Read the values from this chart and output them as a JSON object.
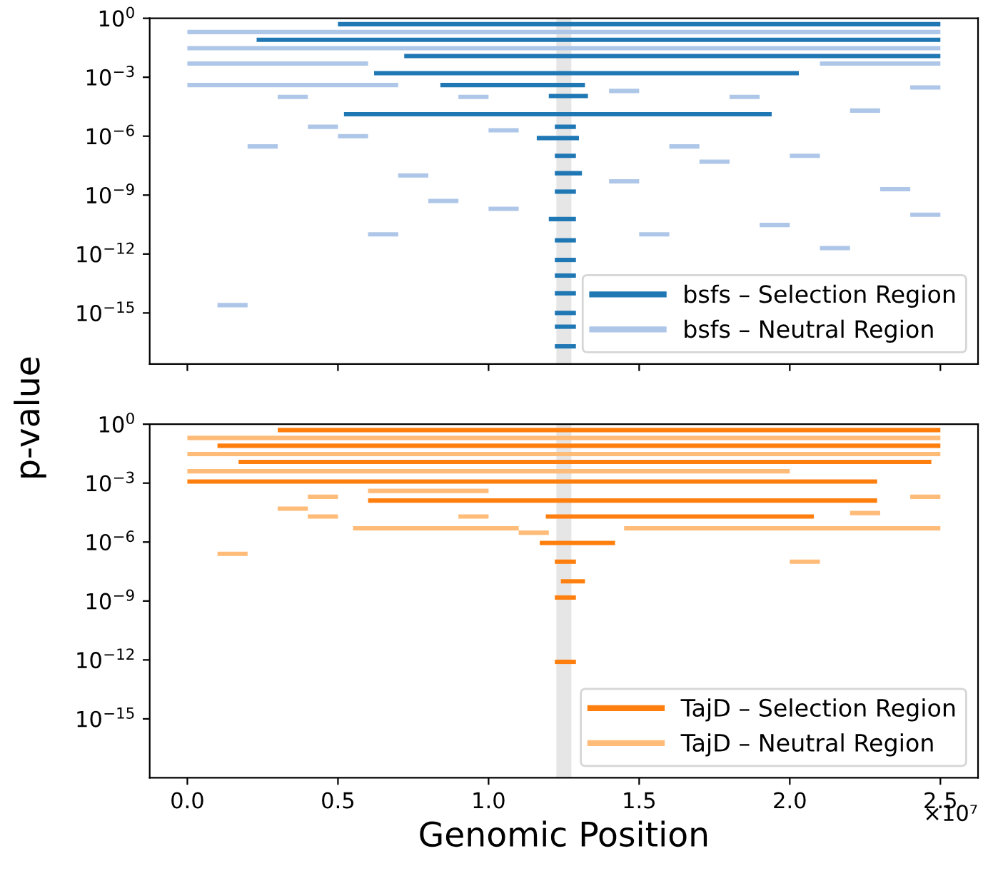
{
  "chart_data": [
    {
      "type": "line",
      "ylabel": "p-value",
      "log": "y",
      "legend": "bottom right",
      "tick_labels": "y",
      "line_style": "solid",
      "xlim": [
        -0.125,
        2.625
      ],
      "xticks": [
        {
          "value": 0,
          "label": null
        },
        {
          "value": 0.5,
          "label": null
        },
        {
          "value": 1,
          "label": null
        },
        {
          "value": 1.5,
          "label": null
        },
        {
          "value": 2,
          "label": null
        },
        {
          "value": 2.5,
          "label": null
        }
      ],
      "ylim": [
        2.5e-18,
        1
      ],
      "yticks": [
        {
          "value": 1,
          "label": "10$^{0}$"
        },
        {
          "value": 0.001,
          "label": "10$^{−3}$"
        },
        {
          "value": 1e-06,
          "label": "10$^{−6}$"
        },
        {
          "value": 1e-09,
          "label": "10$^{−9}$"
        },
        {
          "value": 1e-12,
          "label": "10$^{−12}$"
        },
        {
          "value": 1e-15,
          "label": "10$^{−15}$"
        }
      ],
      "bands": [
        {
          "axis": "x",
          "from": 1.225,
          "to": 1.275,
          "color": "#e6e6e6"
        }
      ],
      "series": [
        {
          "name": "bsfs – Selection Region",
          "color": "#1f77b4",
          "x": [
            0.5,
            2.5
          ],
          "values": [
            0.5,
            0.5
          ]
        },
        {
          "color": "#1f77b4",
          "x": [
            0.23,
            2.5
          ],
          "values": [
            0.08,
            0.08
          ]
        },
        {
          "color": "#1f77b4",
          "x": [
            0.72,
            2.5
          ],
          "values": [
            0.012,
            0.012
          ]
        },
        {
          "color": "#1f77b4",
          "x": [
            0.62,
            2.03
          ],
          "values": [
            0.0016,
            0.0016
          ]
        },
        {
          "color": "#1f77b4",
          "x": [
            0.84,
            1.32
          ],
          "values": [
            0.0004,
            0.0004
          ]
        },
        {
          "color": "#1f77b4",
          "x": [
            1.2,
            1.33
          ],
          "values": [
            0.00011,
            0.00011
          ]
        },
        {
          "color": "#1f77b4",
          "x": [
            0.52,
            1.94
          ],
          "values": [
            1.3e-05,
            1.3e-05
          ]
        },
        {
          "color": "#1f77b4",
          "x": [
            1.16,
            1.3
          ],
          "values": [
            8e-07,
            8e-07
          ]
        },
        {
          "color": "#1f77b4",
          "x": [
            1.22,
            1.31
          ],
          "values": [
            1.3e-08,
            1.3e-08
          ]
        },
        {
          "color": "#1f77b4",
          "x": [
            1.2,
            1.29
          ],
          "values": [
            6e-11,
            6e-11
          ]
        },
        {
          "color": "#1f77b4",
          "x": [
            1.22,
            1.29
          ],
          "values": [
            3e-06,
            3e-06
          ]
        },
        {
          "color": "#1f77b4",
          "x": [
            1.22,
            1.29
          ],
          "values": [
            1e-07,
            1e-07
          ]
        },
        {
          "color": "#1f77b4",
          "x": [
            1.22,
            1.29
          ],
          "values": [
            1.5e-09,
            1.5e-09
          ]
        },
        {
          "color": "#1f77b4",
          "x": [
            1.22,
            1.29
          ],
          "values": [
            5e-12,
            5e-12
          ]
        },
        {
          "color": "#1f77b4",
          "x": [
            1.22,
            1.29
          ],
          "values": [
            5e-13,
            5e-13
          ]
        },
        {
          "color": "#1f77b4",
          "x": [
            1.22,
            1.29
          ],
          "values": [
            8e-14,
            8e-14
          ]
        },
        {
          "color": "#1f77b4",
          "x": [
            1.22,
            1.29
          ],
          "values": [
            1e-14,
            1e-14
          ]
        },
        {
          "color": "#1f77b4",
          "x": [
            1.22,
            1.29
          ],
          "values": [
            1e-15,
            1e-15
          ]
        },
        {
          "color": "#1f77b4",
          "x": [
            1.22,
            1.29
          ],
          "values": [
            2e-16,
            2e-16
          ]
        },
        {
          "color": "#1f77b4",
          "x": [
            1.22,
            1.29
          ],
          "values": [
            2e-17,
            2e-17
          ]
        },
        {
          "name": "bsfs – Neutral Region",
          "color": "#aec7e8",
          "x": [
            0,
            2.5
          ],
          "values": [
            0.2,
            0.2
          ]
        },
        {
          "color": "#aec7e8",
          "x": [
            0,
            2.5
          ],
          "values": [
            0.03,
            0.03
          ]
        },
        {
          "color": "#aec7e8",
          "x": [
            0,
            0.6
          ],
          "values": [
            0.005,
            0.005
          ]
        },
        {
          "color": "#aec7e8",
          "x": [
            2.1,
            2.5
          ],
          "values": [
            0.005,
            0.005
          ]
        },
        {
          "color": "#aec7e8",
          "x": [
            0,
            0.7
          ],
          "values": [
            0.0004,
            0.0004
          ]
        },
        {
          "color": "#aec7e8",
          "x": [
            0.3,
            0.4
          ],
          "values": [
            0.0001,
            0.0001
          ]
        },
        {
          "color": "#aec7e8",
          "x": [
            0.9,
            1.0
          ],
          "values": [
            0.0001,
            0.0001
          ]
        },
        {
          "color": "#aec7e8",
          "x": [
            1.8,
            1.9
          ],
          "values": [
            0.0001,
            0.0001
          ]
        },
        {
          "color": "#aec7e8",
          "x": [
            2.2,
            2.3
          ],
          "values": [
            2e-05,
            2e-05
          ]
        },
        {
          "color": "#aec7e8",
          "x": [
            0.5,
            0.6
          ],
          "values": [
            1e-06,
            1e-06
          ]
        },
        {
          "color": "#aec7e8",
          "x": [
            1.6,
            1.7
          ],
          "values": [
            3e-07,
            3e-07
          ]
        },
        {
          "color": "#aec7e8",
          "x": [
            2.0,
            2.1
          ],
          "values": [
            1e-07,
            1e-07
          ]
        },
        {
          "color": "#aec7e8",
          "x": [
            0.7,
            0.8
          ],
          "values": [
            1e-08,
            1e-08
          ]
        },
        {
          "color": "#aec7e8",
          "x": [
            1.4,
            1.5
          ],
          "values": [
            5e-09,
            5e-09
          ]
        },
        {
          "color": "#aec7e8",
          "x": [
            2.3,
            2.4
          ],
          "values": [
            2e-09,
            2e-09
          ]
        },
        {
          "color": "#aec7e8",
          "x": [
            0.2,
            0.3
          ],
          "values": [
            3e-07,
            3e-07
          ]
        },
        {
          "color": "#aec7e8",
          "x": [
            1.0,
            1.1
          ],
          "values": [
            2e-10,
            2e-10
          ]
        },
        {
          "color": "#aec7e8",
          "x": [
            2.4,
            2.5
          ],
          "values": [
            1e-10,
            1e-10
          ]
        },
        {
          "color": "#aec7e8",
          "x": [
            0.6,
            0.7
          ],
          "values": [
            1e-11,
            1e-11
          ]
        },
        {
          "color": "#aec7e8",
          "x": [
            1.9,
            2.0
          ],
          "values": [
            3e-11,
            3e-11
          ]
        },
        {
          "color": "#aec7e8",
          "x": [
            0.1,
            0.2
          ],
          "values": [
            2.5e-15,
            2.5e-15
          ]
        },
        {
          "color": "#aec7e8",
          "x": [
            1.5,
            1.6
          ],
          "values": [
            1e-11,
            1e-11
          ]
        },
        {
          "color": "#aec7e8",
          "x": [
            0.8,
            0.9
          ],
          "values": [
            5e-10,
            5e-10
          ]
        },
        {
          "color": "#aec7e8",
          "x": [
            2.1,
            2.2
          ],
          "values": [
            2e-12,
            2e-12
          ]
        },
        {
          "color": "#aec7e8",
          "x": [
            0.4,
            0.5
          ],
          "values": [
            3e-06,
            3e-06
          ]
        },
        {
          "color": "#aec7e8",
          "x": [
            1.0,
            1.1
          ],
          "values": [
            2e-06,
            2e-06
          ]
        },
        {
          "color": "#aec7e8",
          "x": [
            1.7,
            1.8
          ],
          "values": [
            5e-08,
            5e-08
          ]
        },
        {
          "color": "#aec7e8",
          "x": [
            2.4,
            2.5
          ],
          "values": [
            0.0003,
            0.0003
          ]
        },
        {
          "color": "#aec7e8",
          "x": [
            1.4,
            1.5
          ],
          "values": [
            0.0002,
            0.0002
          ]
        }
      ]
    },
    {
      "type": "line",
      "xlabel": "Genomic Position",
      "log": "y",
      "legend": "bottom right",
      "line_style": "solid",
      "annotations": [
        "×10⁷"
      ],
      "xlim": [
        -0.125,
        2.625
      ],
      "xticks": [
        {
          "value": 0,
          "label": "0.0"
        },
        {
          "value": 0.5,
          "label": "0.5"
        },
        {
          "value": 1,
          "label": "1.0"
        },
        {
          "value": 1.5,
          "label": "1.5"
        },
        {
          "value": 2,
          "label": "2.0"
        },
        {
          "value": 2.5,
          "label": "2.5"
        }
      ],
      "ylim": [
        1e-18,
        1
      ],
      "yticks": [
        {
          "value": 1,
          "label": "10$^{0}$"
        },
        {
          "value": 0.001,
          "label": "10$^{−3}$"
        },
        {
          "value": 1e-06,
          "label": "10$^{−6}$"
        },
        {
          "value": 1e-09,
          "label": "10$^{−9}$"
        },
        {
          "value": 1e-12,
          "label": "10$^{−12}$"
        },
        {
          "value": 1e-15,
          "label": "10$^{−15}$"
        }
      ],
      "bands": [
        {
          "axis": "x",
          "from": 1.225,
          "to": 1.275,
          "color": "#e6e6e6"
        }
      ],
      "series": [
        {
          "name": "TajD – Selection Region",
          "color": "#ff7f0e",
          "x": [
            0.3,
            2.5
          ],
          "values": [
            0.5,
            0.5
          ]
        },
        {
          "color": "#ff7f0e",
          "x": [
            0.1,
            2.5
          ],
          "values": [
            0.08,
            0.08
          ]
        },
        {
          "color": "#ff7f0e",
          "x": [
            0.17,
            2.47
          ],
          "values": [
            0.012,
            0.012
          ]
        },
        {
          "color": "#ff7f0e",
          "x": [
            0,
            2.29
          ],
          "values": [
            0.0012,
            0.0012
          ]
        },
        {
          "color": "#ff7f0e",
          "x": [
            0.6,
            2.29
          ],
          "values": [
            0.00013,
            0.00013
          ]
        },
        {
          "color": "#ff7f0e",
          "x": [
            1.19,
            2.08
          ],
          "values": [
            2e-05,
            2e-05
          ]
        },
        {
          "color": "#ff7f0e",
          "x": [
            1.17,
            1.42
          ],
          "values": [
            9e-07,
            9e-07
          ]
        },
        {
          "color": "#ff7f0e",
          "x": [
            1.22,
            1.29
          ],
          "values": [
            1e-07,
            1e-07
          ]
        },
        {
          "color": "#ff7f0e",
          "x": [
            1.24,
            1.32
          ],
          "values": [
            1e-08,
            1e-08
          ]
        },
        {
          "color": "#ff7f0e",
          "x": [
            1.22,
            1.29
          ],
          "values": [
            1.5e-09,
            1.5e-09
          ]
        },
        {
          "color": "#ff7f0e",
          "x": [
            1.22,
            1.29
          ],
          "values": [
            8e-13,
            8e-13
          ]
        },
        {
          "name": "TajD – Neutral Region",
          "color": "#ffbb78",
          "x": [
            0,
            2.5
          ],
          "values": [
            0.2,
            0.2
          ]
        },
        {
          "color": "#ffbb78",
          "x": [
            0,
            2.5
          ],
          "values": [
            0.03,
            0.03
          ]
        },
        {
          "color": "#ffbb78",
          "x": [
            0,
            2.0
          ],
          "values": [
            0.004,
            0.004
          ]
        },
        {
          "color": "#ffbb78",
          "x": [
            0.6,
            1.0
          ],
          "values": [
            0.0004,
            0.0004
          ]
        },
        {
          "color": "#ffbb78",
          "x": [
            0.55,
            1.1
          ],
          "values": [
            5e-06,
            5e-06
          ]
        },
        {
          "color": "#ffbb78",
          "x": [
            1.45,
            2.5
          ],
          "values": [
            5e-06,
            5e-06
          ]
        },
        {
          "color": "#ffbb78",
          "x": [
            0.1,
            0.2
          ],
          "values": [
            2.5e-07,
            2.5e-07
          ]
        },
        {
          "color": "#ffbb78",
          "x": [
            2.0,
            2.1
          ],
          "values": [
            1e-07,
            1e-07
          ]
        },
        {
          "color": "#ffbb78",
          "x": [
            0.4,
            0.5
          ],
          "values": [
            2e-05,
            2e-05
          ]
        },
        {
          "color": "#ffbb78",
          "x": [
            2.2,
            2.3
          ],
          "values": [
            3e-05,
            3e-05
          ]
        },
        {
          "color": "#ffbb78",
          "x": [
            0.3,
            0.4
          ],
          "values": [
            5e-05,
            5e-05
          ]
        },
        {
          "color": "#ffbb78",
          "x": [
            1.1,
            1.2
          ],
          "values": [
            3e-06,
            3e-06
          ]
        },
        {
          "color": "#ffbb78",
          "x": [
            0.4,
            0.5
          ],
          "values": [
            0.0002,
            0.0002
          ]
        },
        {
          "color": "#ffbb78",
          "x": [
            2.4,
            2.5
          ],
          "values": [
            0.0002,
            0.0002
          ]
        },
        {
          "color": "#ffbb78",
          "x": [
            0.9,
            1.0
          ],
          "values": [
            2e-05,
            2e-05
          ]
        }
      ]
    }
  ]
}
